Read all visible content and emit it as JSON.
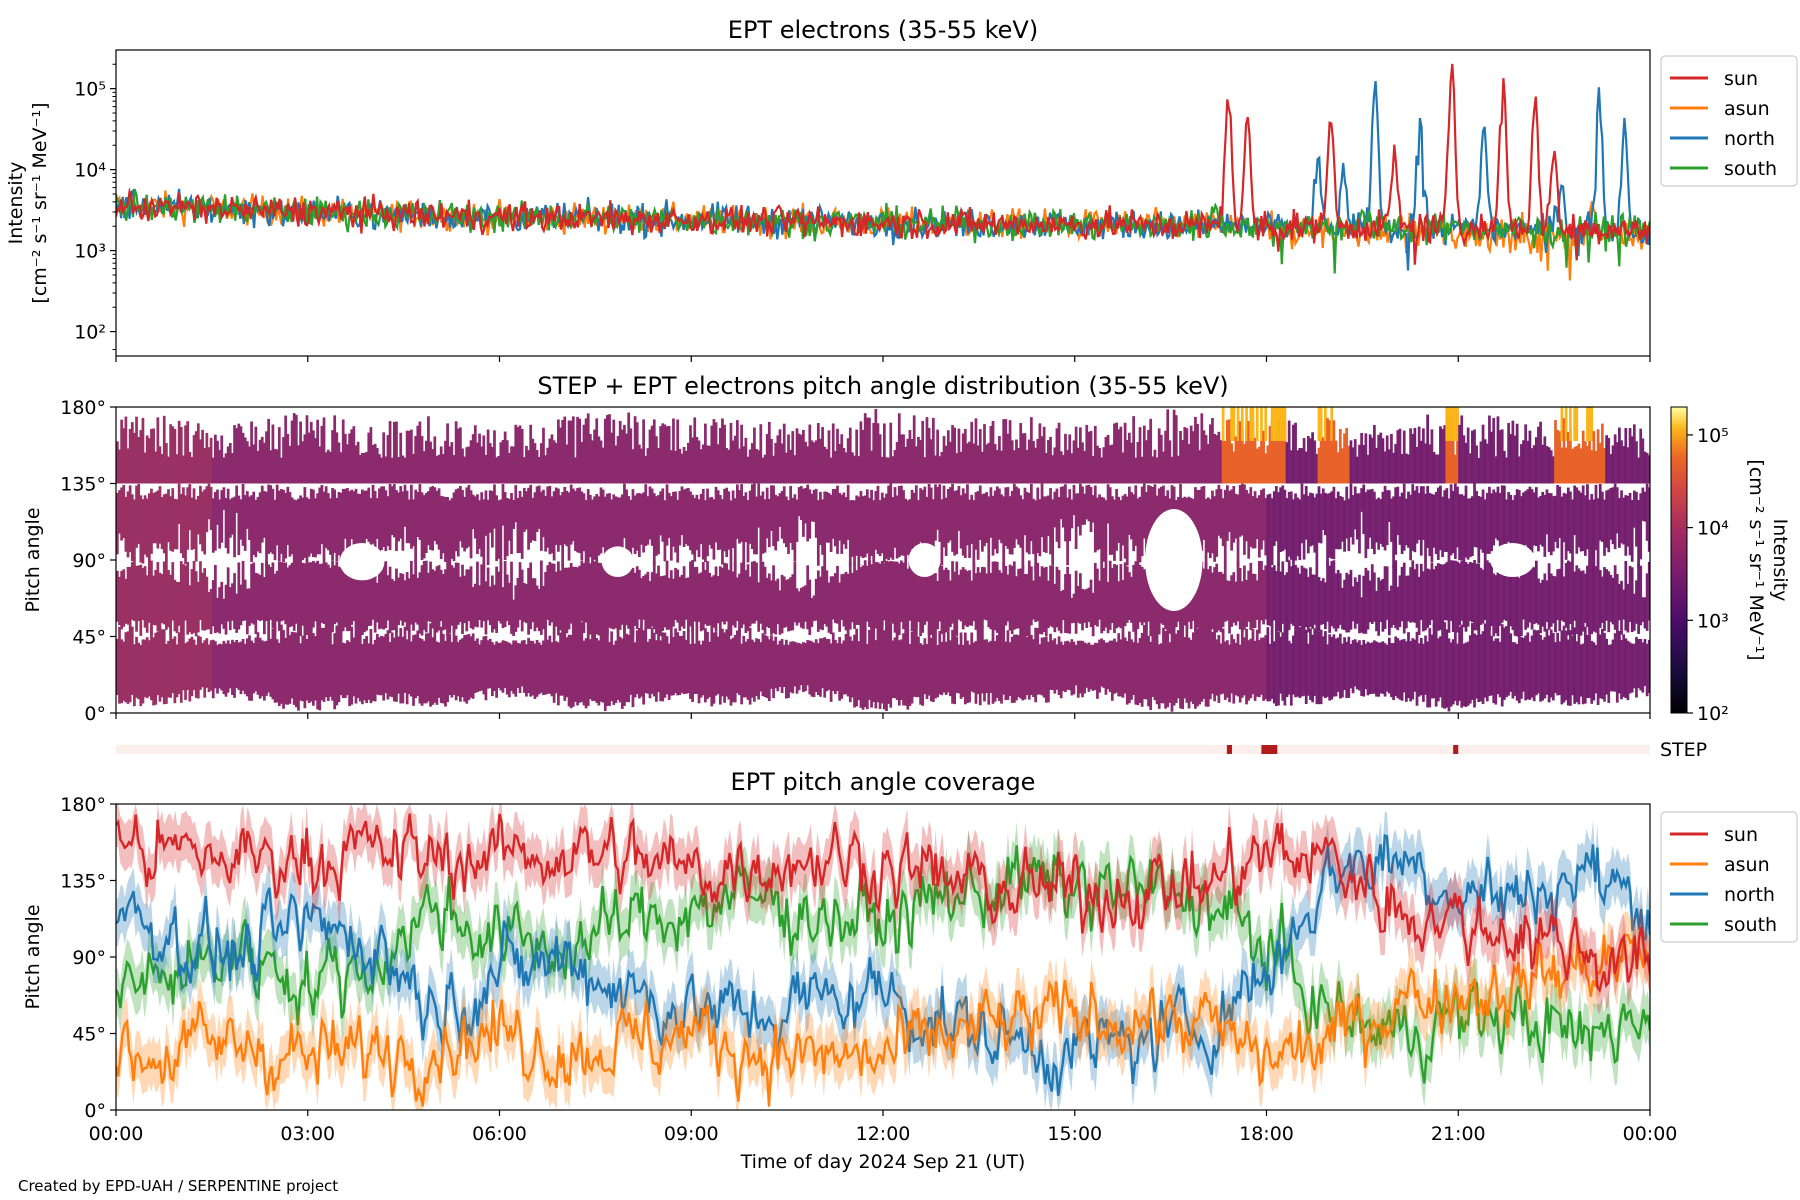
{
  "footer": "Created by EPD-UAH / SERPENTINE project",
  "colors": {
    "sun": "#d62728",
    "asun": "#ff7f0e",
    "north": "#1f77b4",
    "south": "#2ca02c",
    "step_bar_bg": "#fdf0ec",
    "step_bar_mark": "#b01c1c"
  },
  "legend": [
    "sun",
    "asun",
    "north",
    "south"
  ],
  "chart_data": [
    {
      "type": "line",
      "title": "EPT electrons (35-55 keV)",
      "ylabel_line1": "Intensity",
      "ylabel_line2": "[cm⁻² s⁻¹ sr⁻¹ MeV⁻¹]",
      "yscale": "log",
      "ylim": [
        50,
        300000
      ],
      "yticks": [
        {
          "value": 100,
          "label": "10²"
        },
        {
          "value": 1000,
          "label": "10³"
        },
        {
          "value": 10000,
          "label": "10⁴"
        },
        {
          "value": 100000,
          "label": "10⁵"
        }
      ],
      "x_hours_range": [
        0,
        24
      ],
      "baseline": [
        [
          0,
          3600
        ],
        [
          3,
          3000
        ],
        [
          6,
          2600
        ],
        [
          9,
          2400
        ],
        [
          12,
          2200
        ],
        [
          15,
          2100
        ],
        [
          18,
          2000
        ],
        [
          21,
          1900
        ],
        [
          24,
          1800
        ]
      ],
      "series": [
        {
          "name": "sun",
          "spikes": [
            [
              17.4,
              100000
            ],
            [
              17.7,
              35000
            ],
            [
              19.0,
              45000
            ],
            [
              20.0,
              15000
            ],
            [
              20.9,
              210000
            ],
            [
              21.7,
              155000
            ],
            [
              22.2,
              70000
            ],
            [
              22.5,
              15000
            ]
          ]
        },
        {
          "name": "asun",
          "spikes": [
            [
              23.1,
              4000
            ]
          ]
        },
        {
          "name": "north",
          "spikes": [
            [
              18.8,
              12000
            ],
            [
              19.2,
              8000
            ],
            [
              19.7,
              110000
            ],
            [
              20.4,
              50000
            ],
            [
              21.4,
              35000
            ],
            [
              22.6,
              9000
            ],
            [
              23.2,
              90000
            ],
            [
              23.6,
              35000
            ]
          ]
        },
        {
          "name": "south",
          "spikes": [
            [
              17.2,
              3200
            ],
            [
              19.5,
              3000
            ]
          ]
        }
      ],
      "legend_position": "outside right"
    },
    {
      "type": "heatmap",
      "title": "STEP + EPT electrons pitch angle distribution (35-55 keV)",
      "ylabel": "Pitch angle",
      "ylim": [
        0,
        180
      ],
      "yticks": [
        "0°",
        "45°",
        "90°",
        "135°",
        "180°"
      ],
      "colorbar": {
        "label": "Intensity",
        "units": "[cm⁻² s⁻¹ sr⁻¹ MeV⁻¹]",
        "scale": "log",
        "range": [
          100,
          200000
        ],
        "ticks": [
          "10²",
          "10³",
          "10⁴",
          "10⁵"
        ]
      },
      "high_intensity_hours": [
        [
          17.3,
          18.3
        ],
        [
          18.8,
          19.3
        ],
        [
          20.8,
          21.0
        ],
        [
          22.5,
          23.3
        ]
      ],
      "step_label": "STEP",
      "step_marks_hours": [
        [
          17.38,
          17.46
        ],
        [
          17.92,
          18.17
        ],
        [
          20.92,
          21.0
        ]
      ]
    },
    {
      "type": "line",
      "title": "EPT pitch angle coverage",
      "ylabel": "Pitch angle",
      "xlabel": "Time of day 2024 Sep 21 (UT)",
      "ylim": [
        0,
        180
      ],
      "yticks": [
        "0°",
        "45°",
        "90°",
        "135°",
        "180°"
      ],
      "xticks": [
        "00:00",
        "03:00",
        "06:00",
        "09:00",
        "12:00",
        "15:00",
        "18:00",
        "21:00",
        "00:00"
      ],
      "series": [
        {
          "name": "sun",
          "points": [
            [
              0,
              155
            ],
            [
              1,
              150
            ],
            [
              2,
              148
            ],
            [
              3,
              150
            ],
            [
              4,
              152
            ],
            [
              5,
              148
            ],
            [
              6,
              150
            ],
            [
              7,
              152
            ],
            [
              8,
              148
            ],
            [
              9,
              140
            ],
            [
              10,
              145
            ],
            [
              11,
              150
            ],
            [
              12,
              145
            ],
            [
              13,
              135
            ],
            [
              14,
              130
            ],
            [
              15,
              128
            ],
            [
              16,
              130
            ],
            [
              17,
              132
            ],
            [
              18,
              150
            ],
            [
              19,
              148
            ],
            [
              20,
              120
            ],
            [
              21,
              110
            ],
            [
              22,
              105
            ],
            [
              23,
              95
            ],
            [
              24,
              80
            ]
          ]
        },
        {
          "name": "asun",
          "points": [
            [
              0,
              30
            ],
            [
              1,
              35
            ],
            [
              2,
              40
            ],
            [
              3,
              30
            ],
            [
              4,
              35
            ],
            [
              5,
              40
            ],
            [
              6,
              45
            ],
            [
              7,
              35
            ],
            [
              8,
              40
            ],
            [
              9,
              45
            ],
            [
              10,
              35
            ],
            [
              11,
              30
            ],
            [
              12,
              30
            ],
            [
              13,
              45
            ],
            [
              14,
              50
            ],
            [
              15,
              55
            ],
            [
              16,
              55
            ],
            [
              17,
              50
            ],
            [
              18,
              30
            ],
            [
              19,
              40
            ],
            [
              20,
              65
            ],
            [
              21,
              70
            ],
            [
              22,
              75
            ],
            [
              23,
              85
            ],
            [
              24,
              95
            ]
          ]
        },
        {
          "name": "north",
          "points": [
            [
              0,
              120
            ],
            [
              1,
              100
            ],
            [
              2,
              90
            ],
            [
              3,
              110
            ],
            [
              4,
              100
            ],
            [
              5,
              60
            ],
            [
              6,
              80
            ],
            [
              7,
              90
            ],
            [
              8,
              70
            ],
            [
              9,
              60
            ],
            [
              10,
              55
            ],
            [
              11,
              65
            ],
            [
              12,
              70
            ],
            [
              13,
              50
            ],
            [
              14,
              40
            ],
            [
              15,
              35
            ],
            [
              16,
              40
            ],
            [
              17,
              50
            ],
            [
              18,
              80
            ],
            [
              19,
              140
            ],
            [
              20,
              150
            ],
            [
              21,
              130
            ],
            [
              22,
              125
            ],
            [
              23,
              140
            ],
            [
              24,
              120
            ]
          ]
        },
        {
          "name": "south",
          "points": [
            [
              0,
              70
            ],
            [
              1,
              80
            ],
            [
              2,
              95
            ],
            [
              3,
              75
            ],
            [
              4,
              85
            ],
            [
              5,
              120
            ],
            [
              6,
              100
            ],
            [
              7,
              95
            ],
            [
              8,
              110
            ],
            [
              9,
              120
            ],
            [
              10,
              125
            ],
            [
              11,
              115
            ],
            [
              12,
              110
            ],
            [
              13,
              125
            ],
            [
              14,
              135
            ],
            [
              15,
              130
            ],
            [
              16,
              128
            ],
            [
              17,
              125
            ],
            [
              18,
              95
            ],
            [
              19,
              55
            ],
            [
              20,
              45
            ],
            [
              21,
              55
            ],
            [
              22,
              55
            ],
            [
              23,
              40
            ],
            [
              24,
              60
            ]
          ]
        }
      ],
      "legend_position": "outside right"
    }
  ]
}
